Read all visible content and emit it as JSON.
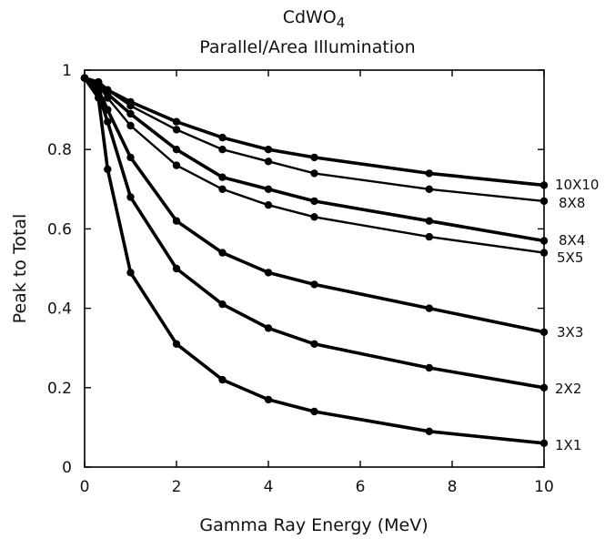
{
  "chart_data": {
    "type": "line",
    "title_main": "CdWO",
    "title_subscript": "4",
    "subtitle": "Parallel/Area Illumination",
    "xlabel": "Gamma Ray Energy (MeV)",
    "ylabel": "Peak to Total",
    "xlim": [
      0,
      10
    ],
    "ylim": [
      0,
      1
    ],
    "x_ticks": [
      0,
      2,
      4,
      6,
      8,
      10
    ],
    "y_ticks": [
      0,
      0.2,
      0.4,
      0.6,
      0.8,
      1
    ],
    "x_tick_labels": [
      "0",
      "2",
      "4",
      "6",
      "8",
      "10"
    ],
    "y_tick_labels": [
      "0",
      "0.2",
      "0.4",
      "0.6",
      "0.8",
      "1"
    ],
    "grid": false,
    "x": [
      0,
      0.3,
      0.5,
      1,
      2,
      3,
      4,
      5,
      7.5,
      10
    ],
    "series": [
      {
        "name": "10X10",
        "values": [
          0.98,
          0.97,
          0.95,
          0.92,
          0.87,
          0.83,
          0.8,
          0.78,
          0.74,
          0.71
        ]
      },
      {
        "name": "8X8",
        "values": [
          0.98,
          0.97,
          0.95,
          0.91,
          0.85,
          0.8,
          0.77,
          0.74,
          0.7,
          0.67
        ]
      },
      {
        "name": "8X4",
        "values": [
          0.98,
          0.96,
          0.94,
          0.89,
          0.8,
          0.73,
          0.7,
          0.67,
          0.62,
          0.57
        ]
      },
      {
        "name": "5X5",
        "values": [
          0.98,
          0.96,
          0.93,
          0.86,
          0.76,
          0.7,
          0.66,
          0.63,
          0.58,
          0.54
        ]
      },
      {
        "name": "3X3",
        "values": [
          0.98,
          0.95,
          0.9,
          0.78,
          0.62,
          0.54,
          0.49,
          0.46,
          0.4,
          0.34
        ]
      },
      {
        "name": "2X2",
        "values": [
          0.98,
          0.94,
          0.87,
          0.68,
          0.5,
          0.41,
          0.35,
          0.31,
          0.25,
          0.2
        ]
      },
      {
        "name": "1X1",
        "values": [
          0.98,
          0.93,
          0.75,
          0.49,
          0.31,
          0.22,
          0.17,
          0.14,
          0.09,
          0.06
        ]
      }
    ]
  }
}
